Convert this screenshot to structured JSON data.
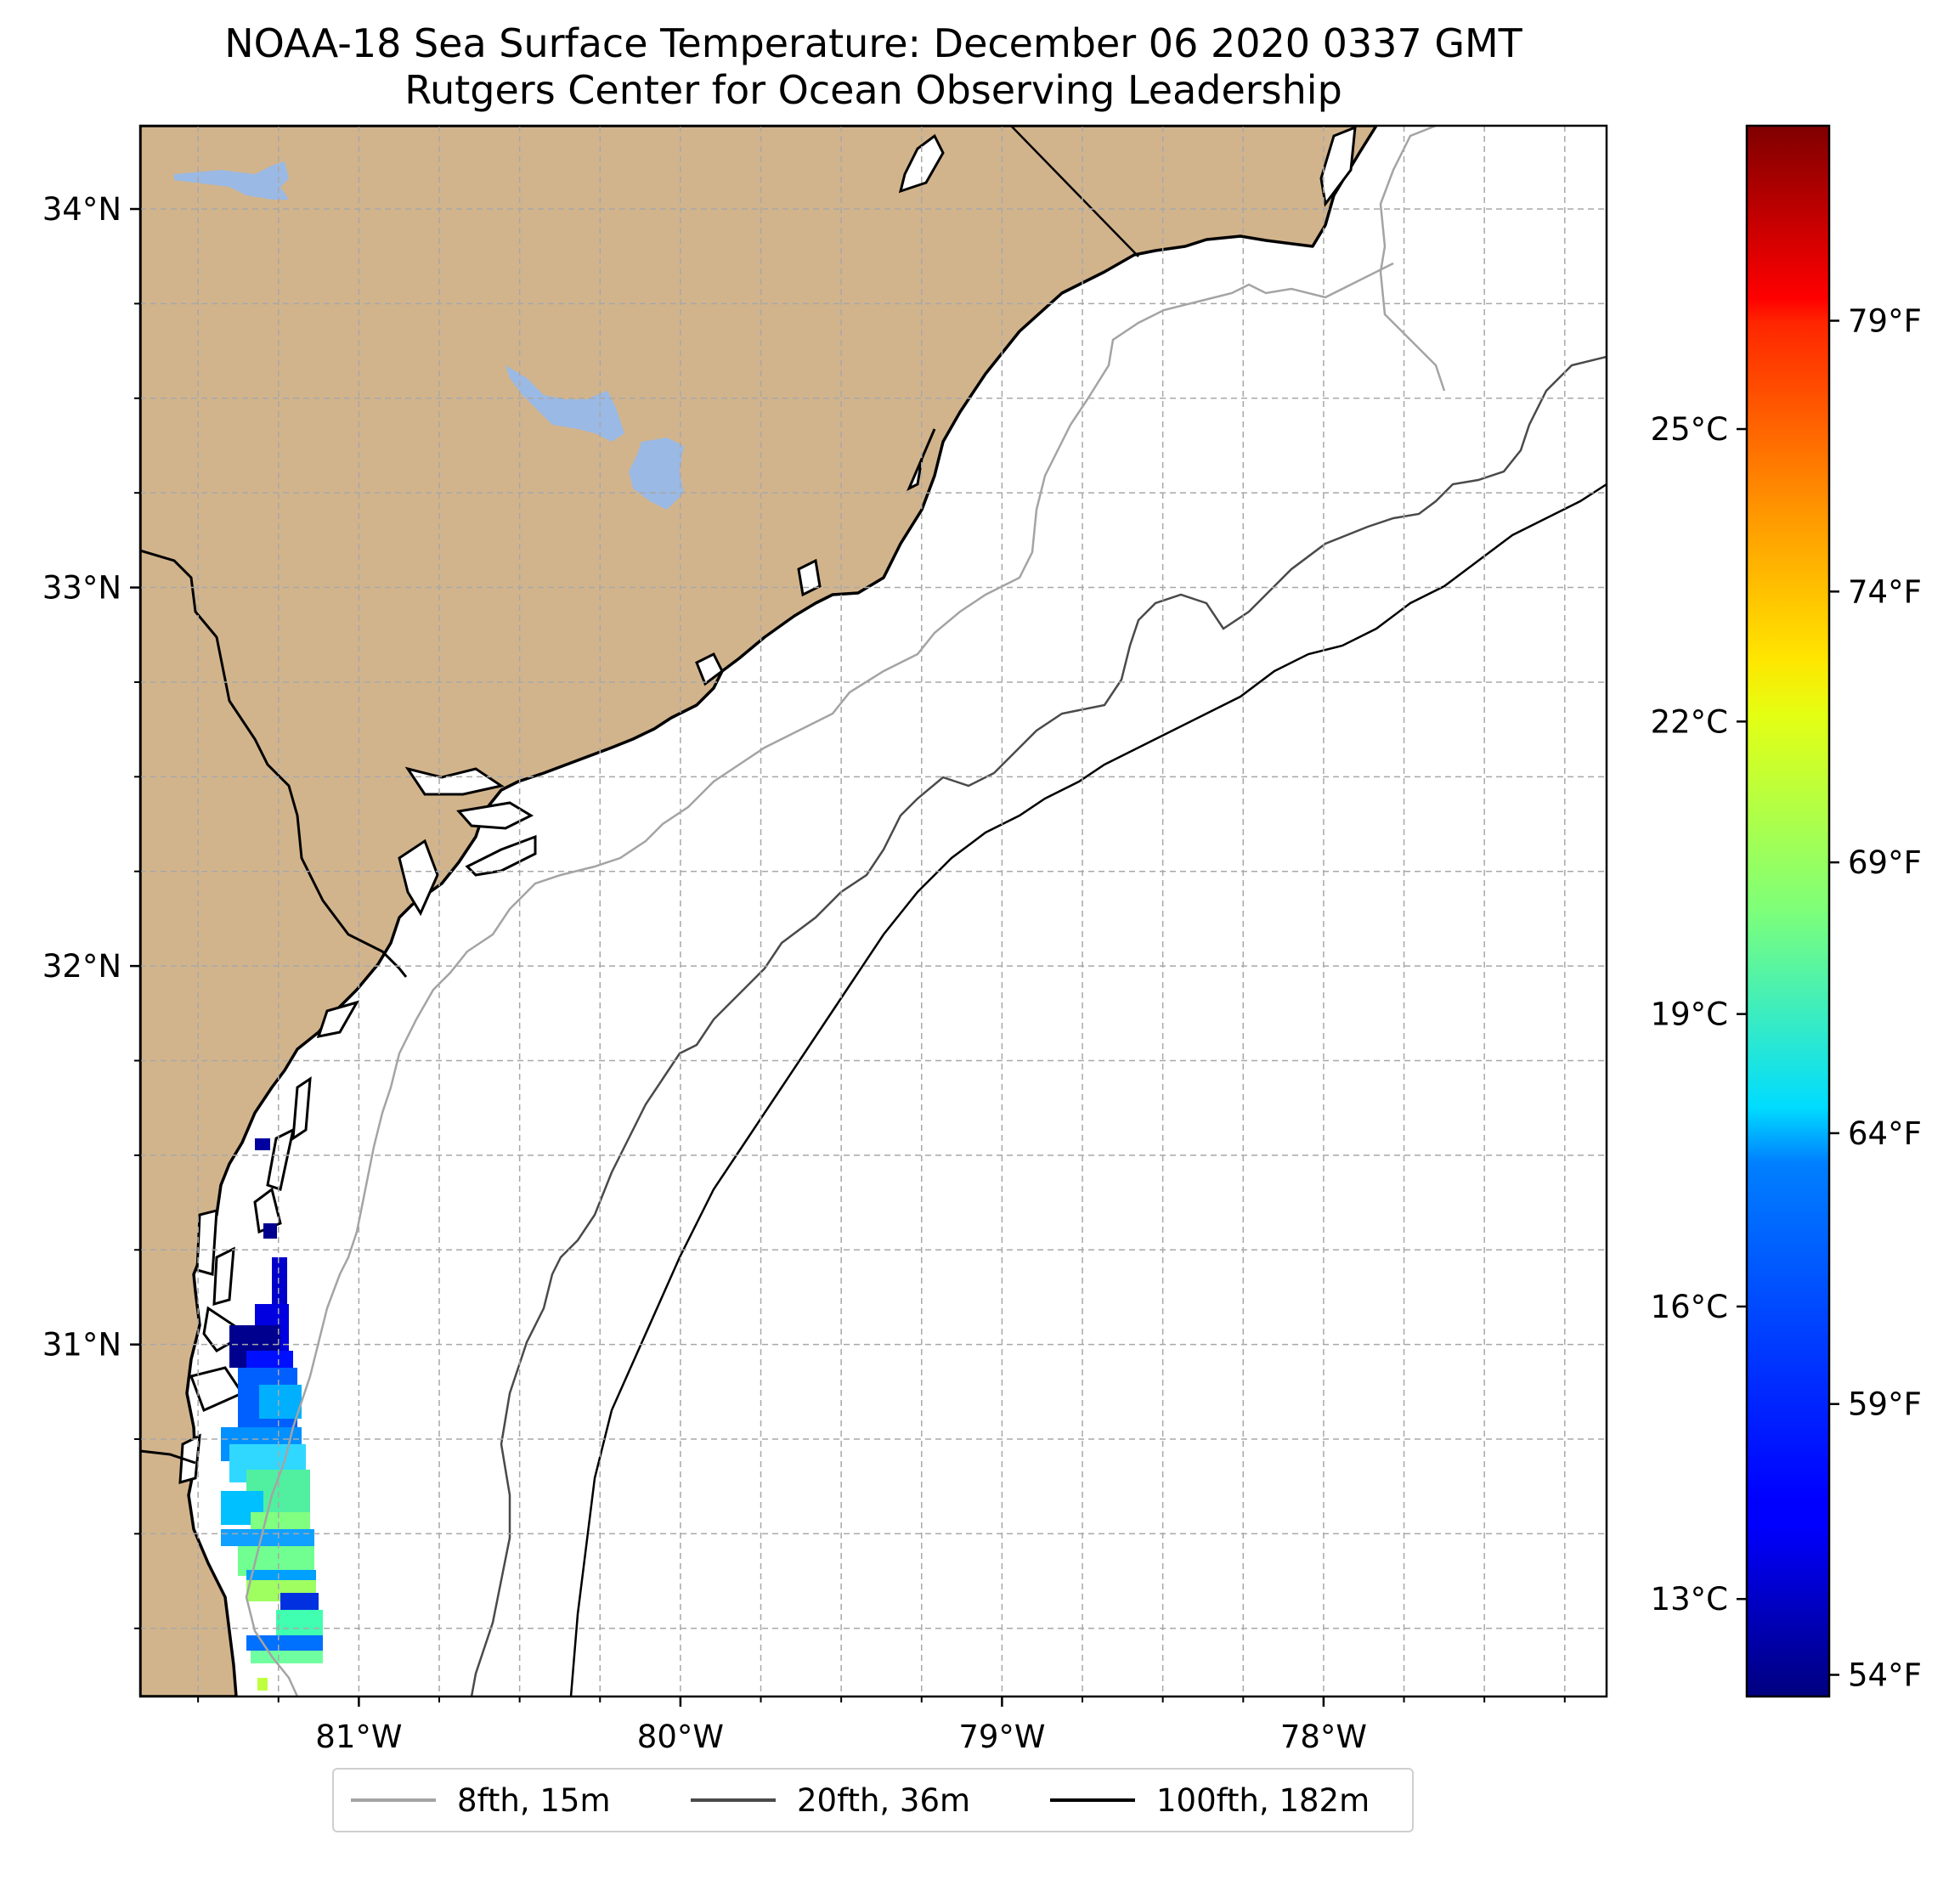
{
  "figure": {
    "title_line1": "NOAA-18 Sea Surface Temperature: December 06 2020 0337 GMT",
    "title_line2": "Rutgers Center for Ocean Observing Leadership"
  },
  "map": {
    "lon_range": [
      -81.68,
      -77.12
    ],
    "lat_range": [
      30.07,
      34.22
    ],
    "lon_ticks": [
      {
        "value": -81,
        "label": "81°W"
      },
      {
        "value": -80,
        "label": "80°W"
      },
      {
        "value": -79,
        "label": "79°W"
      },
      {
        "value": -78,
        "label": "78°W"
      }
    ],
    "lat_ticks": [
      {
        "value": 34,
        "label": "34°N"
      },
      {
        "value": 33,
        "label": "33°N"
      },
      {
        "value": 32,
        "label": "32°N"
      },
      {
        "value": 31,
        "label": "31°N"
      }
    ],
    "gridlines": true,
    "colors": {
      "land": "#d2b48c",
      "ocean": "#ffffff",
      "lakes": "#9ab9e4",
      "coastline": "#000000",
      "grid": "#a8a8a8"
    }
  },
  "colorbar": {
    "colormap": "jet",
    "celsius_ticks": [
      {
        "value": 25,
        "label": "25°C"
      },
      {
        "value": 22,
        "label": "22°C"
      },
      {
        "value": 19,
        "label": "19°C"
      },
      {
        "value": 16,
        "label": "16°C"
      },
      {
        "value": 13,
        "label": "13°C"
      }
    ],
    "fahrenheit_ticks": [
      {
        "value": 79,
        "label": "79°F"
      },
      {
        "value": 74,
        "label": "74°F"
      },
      {
        "value": 69,
        "label": "69°F"
      },
      {
        "value": 64,
        "label": "64°F"
      },
      {
        "value": 59,
        "label": "59°F"
      },
      {
        "value": 54,
        "label": "54°F"
      }
    ]
  },
  "legend": {
    "placement": "bottom-center",
    "entries": [
      {
        "label": "8fth, 15m",
        "color": "#a4a4a4"
      },
      {
        "label": "20fth, 36m",
        "color": "#4a4a4a"
      },
      {
        "label": "100fth, 182m",
        "color": "#000000"
      }
    ]
  }
}
